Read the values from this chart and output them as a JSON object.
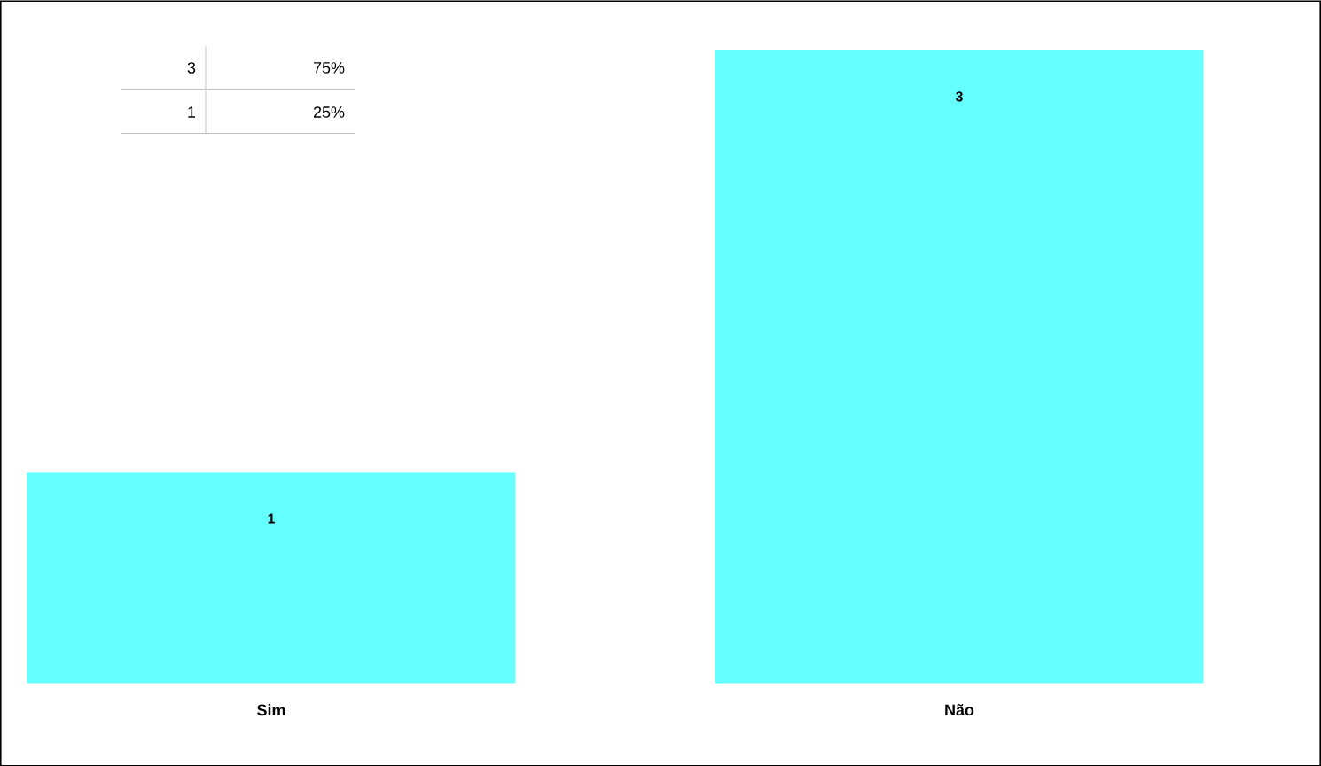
{
  "chart_data": {
    "type": "bar",
    "categories": [
      "Sim",
      "Não"
    ],
    "values": [
      1,
      3
    ],
    "color": "#66ffff",
    "data_labels": true,
    "annotations": [
      "3",
      "75%",
      "1",
      "25%"
    ]
  }
}
